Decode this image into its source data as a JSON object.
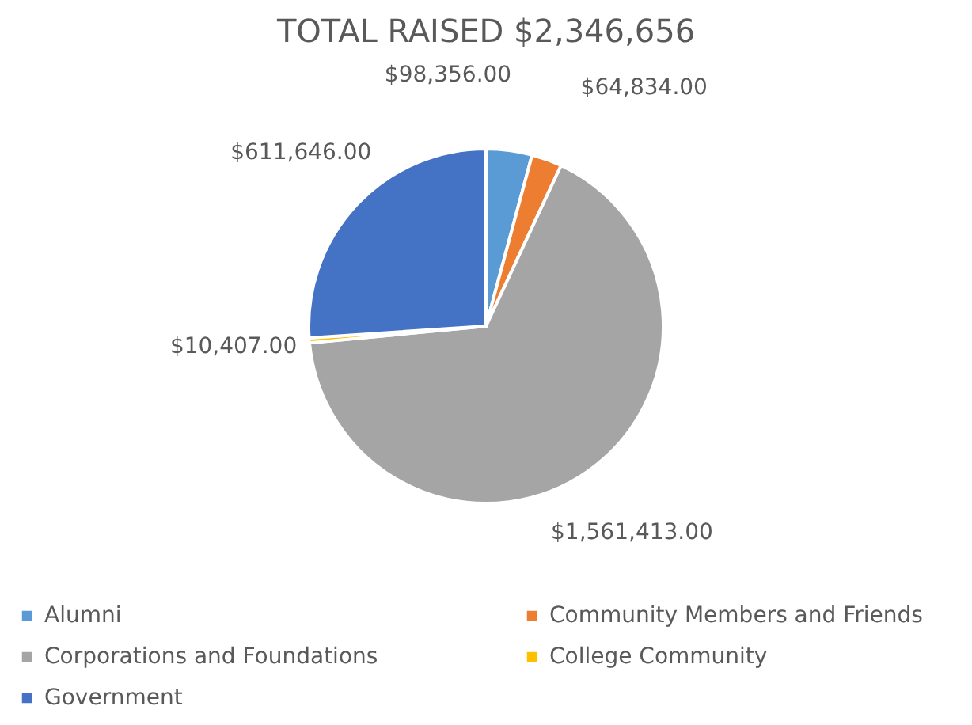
{
  "chart_data": {
    "type": "pie",
    "title": "TOTAL RAISED $2,346,656",
    "categories": [
      "Alumni",
      "Community Members and Friends",
      "Corporations and Foundations",
      "College Community",
      "Government"
    ],
    "values": [
      98356,
      64834,
      1561413,
      10407,
      611646
    ],
    "colors": [
      "#5b9bd5",
      "#ed7d31",
      "#a5a5a5",
      "#ffc000",
      "#4472c4"
    ],
    "value_labels": [
      "$98,356.00",
      "$64,834.00",
      "$1,561,413.00",
      "$10,407.00",
      "$611,646.00"
    ],
    "legend": "bottom"
  }
}
